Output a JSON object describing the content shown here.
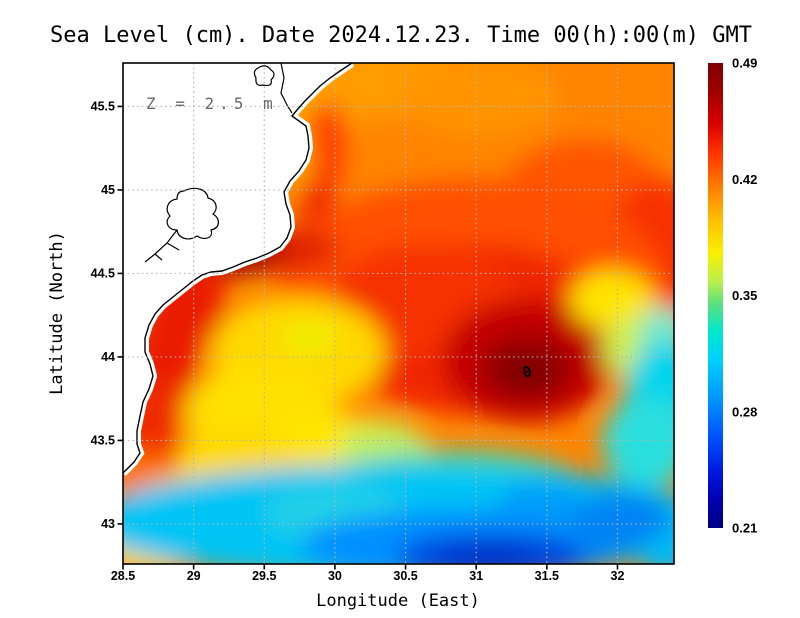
{
  "title": "Sea Level (cm). Date 2024.12.23. Time 00(h):00(m) GMT",
  "annotation": "Z = 2.5 m",
  "contour_label": "0",
  "axes": {
    "x": {
      "label": "Longitude (East)",
      "min": 28.5,
      "max": 32.4,
      "ticks": [
        28.5,
        29,
        29.5,
        30,
        30.5,
        31,
        31.5,
        32
      ],
      "tick_labels": [
        "28.5",
        "29",
        "29.5",
        "30",
        "30.5",
        "31",
        "31.5",
        "32"
      ]
    },
    "y": {
      "label": "Latitude (North)",
      "min": 42.76,
      "max": 45.76,
      "ticks": [
        45.5,
        45,
        44.5,
        44,
        43.5,
        43
      ],
      "tick_labels": [
        "45.5",
        "45",
        "44.5",
        "44",
        "43.5",
        "43"
      ]
    },
    "grid": "dotted-gray"
  },
  "colorbar": {
    "tick_labels": [
      "0.49",
      "0.42",
      "0.35",
      "0.28",
      "0.21"
    ],
    "min": 0.21,
    "max": 0.49,
    "gradient": [
      {
        "o": 0.0,
        "c": "#7f0000"
      },
      {
        "o": 0.06,
        "c": "#a00000"
      },
      {
        "o": 0.13,
        "c": "#d80000"
      },
      {
        "o": 0.19,
        "c": "#ff3000"
      },
      {
        "o": 0.27,
        "c": "#ff8000"
      },
      {
        "o": 0.34,
        "c": "#ffc100"
      },
      {
        "o": 0.41,
        "c": "#f8f000"
      },
      {
        "o": 0.47,
        "c": "#b8f04d"
      },
      {
        "o": 0.52,
        "c": "#58e080"
      },
      {
        "o": 0.58,
        "c": "#00e8d0"
      },
      {
        "o": 0.64,
        "c": "#00cfff"
      },
      {
        "o": 0.72,
        "c": "#0098ff"
      },
      {
        "o": 0.8,
        "c": "#0055ff"
      },
      {
        "o": 0.88,
        "c": "#0018e0"
      },
      {
        "o": 0.94,
        "c": "#0000b0"
      },
      {
        "o": 1.0,
        "c": "#000082"
      }
    ]
  },
  "chart_data": {
    "type": "heatmap",
    "title": "Sea Level (cm). Date 2024.12.23. Time 00(h):00(m) GMT",
    "xlabel": "Longitude (East)",
    "ylabel": "Latitude (North)",
    "xlim": [
      28.5,
      32.4
    ],
    "ylim": [
      42.76,
      45.76
    ],
    "value_range": [
      0.21,
      0.49
    ],
    "colormap": "jet",
    "grid": true,
    "legend_position": "right-colorbar",
    "annotation": "Z = 2.5 m",
    "lons": [
      28.75,
      29.25,
      29.75,
      30.25,
      30.75,
      31.25,
      31.75,
      32.25
    ],
    "lats": [
      45.5,
      45.0,
      44.5,
      44.0,
      43.5,
      43.0
    ],
    "values": [
      [
        null,
        null,
        0.43,
        0.41,
        0.41,
        0.42,
        0.42,
        0.42
      ],
      [
        null,
        null,
        0.44,
        0.41,
        0.41,
        0.42,
        0.43,
        0.43
      ],
      [
        0.45,
        0.46,
        0.43,
        0.41,
        0.42,
        0.44,
        0.44,
        0.42
      ],
      [
        0.45,
        0.42,
        0.39,
        0.38,
        0.45,
        0.48,
        0.44,
        0.37
      ],
      [
        0.43,
        0.4,
        0.38,
        0.36,
        0.34,
        0.36,
        0.31,
        0.31
      ],
      [
        0.38,
        0.36,
        0.33,
        0.31,
        0.29,
        0.26,
        0.27,
        0.3
      ]
    ],
    "features": [
      {
        "name": "anticyclonic-maximum",
        "lon": 31.35,
        "lat": 43.92,
        "value": 0.49,
        "contour_label": "0"
      },
      {
        "name": "coastal-maximum",
        "lon": 29.3,
        "lat": 44.65,
        "value": 0.47
      },
      {
        "name": "southern-minimum",
        "lon": 31.3,
        "lat": 42.85,
        "value": 0.21
      },
      {
        "name": "land",
        "description": "western Black Sea coast, white with black coastline"
      }
    ]
  }
}
